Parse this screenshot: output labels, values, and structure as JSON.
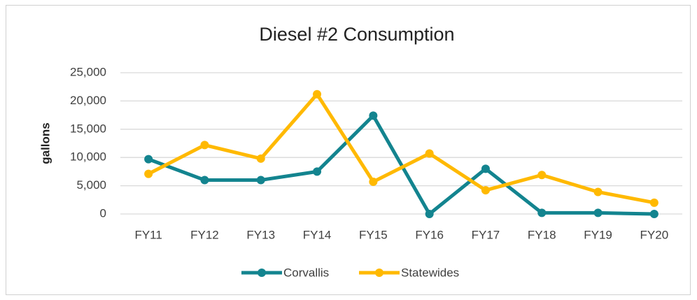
{
  "chart_data": {
    "type": "line",
    "title": "Diesel #2 Consumption",
    "y_label": "gallons",
    "categories": [
      "FY11",
      "FY12",
      "FY13",
      "FY14",
      "FY15",
      "FY16",
      "FY17",
      "FY18",
      "FY19",
      "FY20"
    ],
    "series": [
      {
        "name": "Corvallis",
        "color": "#13848f",
        "values": [
          9700,
          6000,
          6000,
          7500,
          17400,
          0,
          8000,
          200,
          200,
          0
        ]
      },
      {
        "name": "Statewides",
        "color": "#ffb900",
        "values": [
          7100,
          12200,
          9800,
          21200,
          5700,
          10700,
          4200,
          6900,
          3900,
          2000
        ]
      }
    ],
    "ylim": [
      0,
      25000
    ],
    "yticks": [
      0,
      {
        "value": 5000,
        "label": "5,000"
      },
      {
        "value": 10000,
        "label": "10,000"
      },
      {
        "value": 15000,
        "label": "15,000"
      },
      {
        "value": 20000,
        "label": "20,000"
      },
      {
        "value": 25000,
        "label": "25,000"
      }
    ],
    "grid": true,
    "legend": "bottom"
  }
}
